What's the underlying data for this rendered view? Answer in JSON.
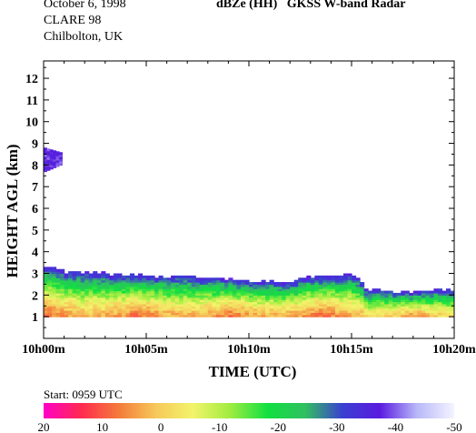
{
  "header": {
    "date": "October  6, 1998",
    "campaign": "CLARE 98",
    "site": "Chilbolton, UK",
    "product": "dBZe (HH)",
    "instrument": "GKSS  W-band Radar"
  },
  "footer": {
    "start_text": "Start: 0959 UTC"
  },
  "chart_data": {
    "type": "heatmap",
    "title": "dBZe (HH)   GKSS  W-band Radar",
    "xlabel": "TIME (UTC)",
    "ylabel": "HEIGHT AGL (km)",
    "xlim_minutes": [
      0,
      20
    ],
    "ylim_km": [
      0,
      12.8
    ],
    "x_ticks": [
      {
        "minute": 0,
        "label": "10h00m"
      },
      {
        "minute": 5,
        "label": "10h05m"
      },
      {
        "minute": 10,
        "label": "10h10m"
      },
      {
        "minute": 15,
        "label": "10h15m"
      },
      {
        "minute": 20,
        "label": "10h20m"
      }
    ],
    "y_ticks": [
      1,
      2,
      3,
      4,
      5,
      6,
      7,
      8,
      9,
      10,
      11,
      12
    ],
    "colorbar": {
      "labels": [
        "20",
        "10",
        "0",
        "-10",
        "-20",
        "-30",
        "-40",
        "-50"
      ],
      "range_dbz": [
        20,
        -50
      ],
      "stops": [
        "#ff00c8",
        "#ff2a50",
        "#f47a3a",
        "#f6c85a",
        "#f2f46a",
        "#a0ec40",
        "#10e040",
        "#30c060",
        "#3a40d0",
        "#5a1ae0",
        "#b8b8f8",
        "#f4f4ff"
      ]
    },
    "echo_layers": [
      {
        "name": "upper cirrus",
        "t_start_min": 0.0,
        "t_end_min": 0.9,
        "base_km": 7.7,
        "top_km": 8.7,
        "dbz_typical": -38
      },
      {
        "name": "main cloud",
        "t_start_min": 0.0,
        "t_end_min": 20.0,
        "base_km": 1.0,
        "top_km": 3.3,
        "dbz_core": 8,
        "dbz_top": -35
      }
    ],
    "cloud_top_km": [
      [
        0.0,
        3.3
      ],
      [
        0.5,
        3.15
      ],
      [
        1,
        3.05
      ],
      [
        2,
        3.0
      ],
      [
        3,
        2.95
      ],
      [
        4,
        2.9
      ],
      [
        5,
        2.85
      ],
      [
        6,
        2.85
      ],
      [
        7,
        2.8
      ],
      [
        8,
        2.8
      ],
      [
        9,
        2.7
      ],
      [
        10,
        2.6
      ],
      [
        11,
        2.6
      ],
      [
        11.5,
        2.5
      ],
      [
        12,
        2.6
      ],
      [
        12.5,
        2.75
      ],
      [
        13,
        2.8
      ],
      [
        13.5,
        2.85
      ],
      [
        14,
        2.9
      ],
      [
        15,
        2.9
      ],
      [
        15.3,
        2.8
      ],
      [
        15.5,
        2.2
      ],
      [
        16,
        2.2
      ],
      [
        17,
        2.1
      ],
      [
        18,
        2.1
      ],
      [
        19,
        2.2
      ],
      [
        20,
        2.2
      ]
    ],
    "grid": false
  }
}
